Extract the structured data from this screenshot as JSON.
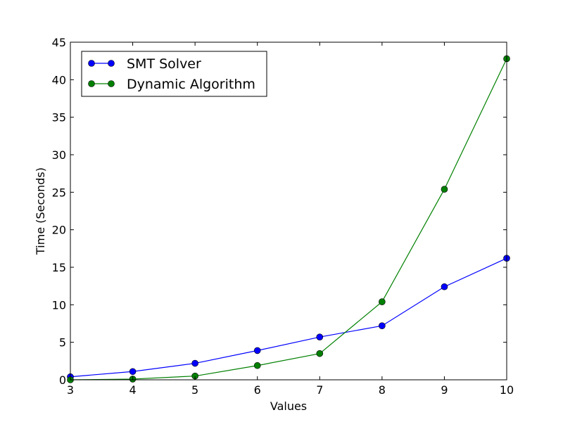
{
  "chart_data": {
    "type": "line",
    "title": "",
    "xlabel": "Values",
    "ylabel": "Time (Seconds)",
    "xlim": [
      3,
      10
    ],
    "ylim": [
      0,
      45
    ],
    "xticks": [
      3,
      4,
      5,
      6,
      7,
      8,
      9,
      10
    ],
    "yticks": [
      0,
      5,
      10,
      15,
      20,
      25,
      30,
      35,
      40,
      45
    ],
    "x": [
      3,
      4,
      5,
      6,
      7,
      8,
      9,
      10
    ],
    "grid": false,
    "legend_position": "top-left",
    "series": [
      {
        "name": "SMT Solver",
        "color": "#0000ff",
        "marker": "circle",
        "values": [
          0.4,
          1.1,
          2.2,
          3.9,
          5.7,
          7.2,
          12.4,
          16.2
        ]
      },
      {
        "name": "Dynamic Algorithm",
        "color": "#008000",
        "marker": "circle",
        "values": [
          0.0,
          0.1,
          0.5,
          1.9,
          3.5,
          10.4,
          25.4,
          42.8
        ]
      }
    ]
  }
}
